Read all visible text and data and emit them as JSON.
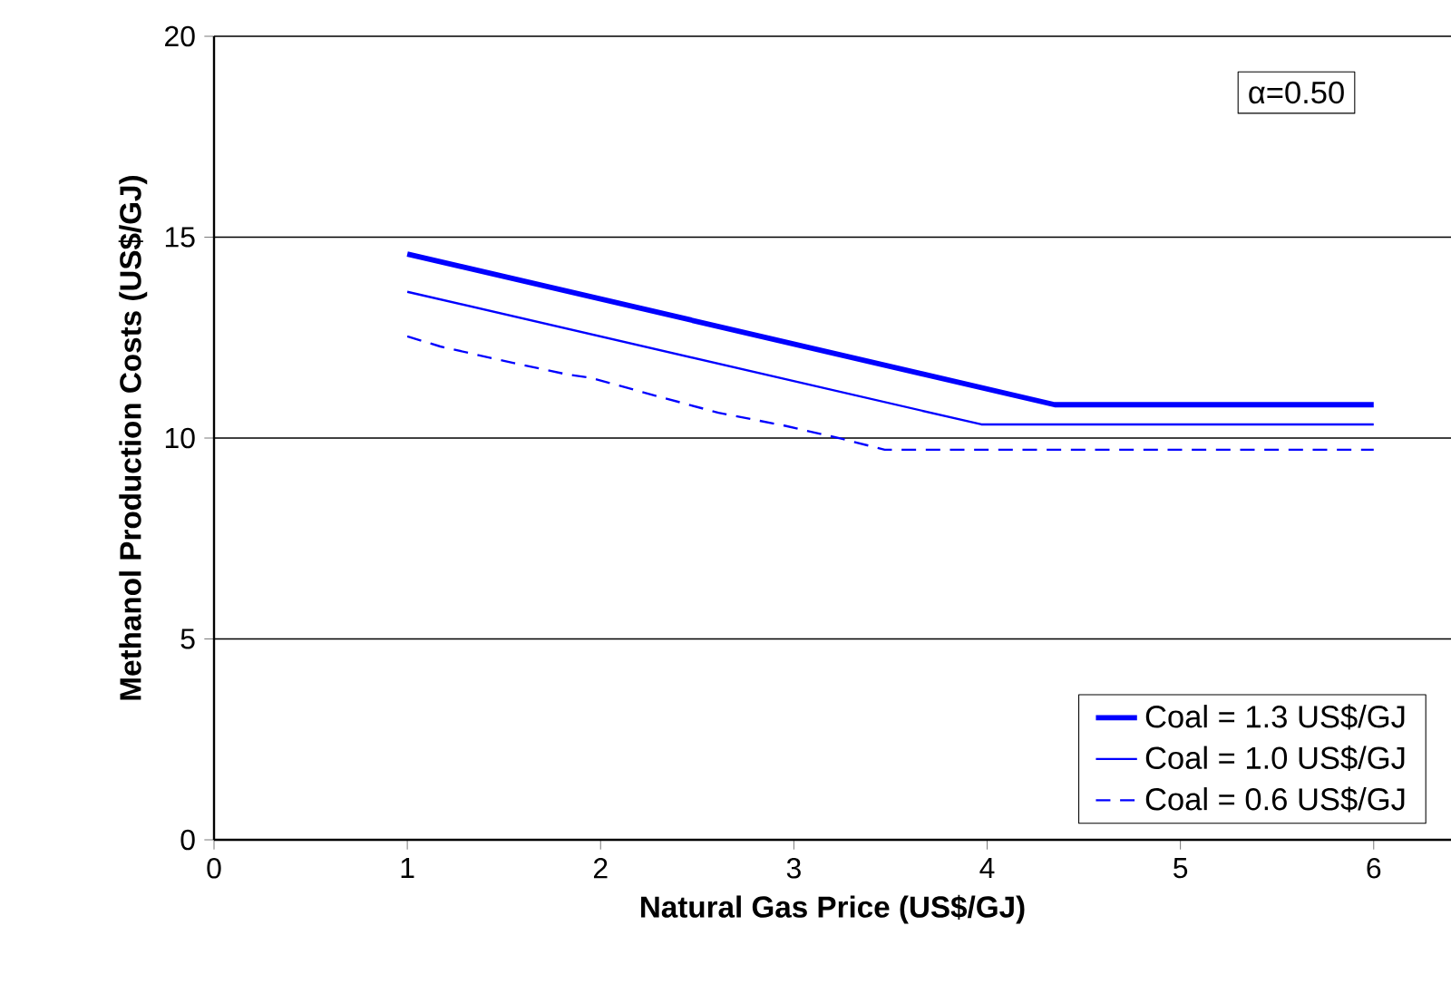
{
  "chart_data": {
    "type": "line",
    "xlabel": "Natural Gas Price (US$/GJ)",
    "ylabel": "Methanol Production Costs (US$/GJ)",
    "xlim": [
      0,
      6.4
    ],
    "xticks": [
      0,
      1,
      2,
      3,
      4,
      5,
      6
    ],
    "ylim": [
      0,
      20
    ],
    "yticks": [
      0,
      5,
      10,
      15,
      20
    ],
    "grid": "y",
    "legend": "bottom right",
    "marker": "none",
    "annotations": [
      "α=0.50"
    ],
    "series": [
      {
        "name": "Coal = 1.3 US$/GJ",
        "color": "#0000ff",
        "line_style": "solid",
        "x": [
          1,
          4.35,
          6
        ],
        "values": [
          14.58,
          10.83,
          10.83
        ]
      },
      {
        "name": "Coal = 1.0 US$/GJ",
        "color": "#0000ff",
        "line_style": "solid",
        "x": [
          1,
          3.97,
          6
        ],
        "values": [
          13.64,
          10.34,
          10.34
        ]
      },
      {
        "name": "Coal = 0.6 US$/GJ",
        "color": "#0000ff",
        "line_style": "dashed",
        "x": [
          1,
          1.17,
          1.5,
          1.83,
          1.95,
          2.28,
          2.61,
          2.95,
          3.24,
          3.47,
          6
        ],
        "values": [
          12.53,
          12.28,
          11.92,
          11.58,
          11.5,
          11.06,
          10.63,
          10.31,
          9.99,
          9.71,
          9.71
        ]
      }
    ]
  }
}
